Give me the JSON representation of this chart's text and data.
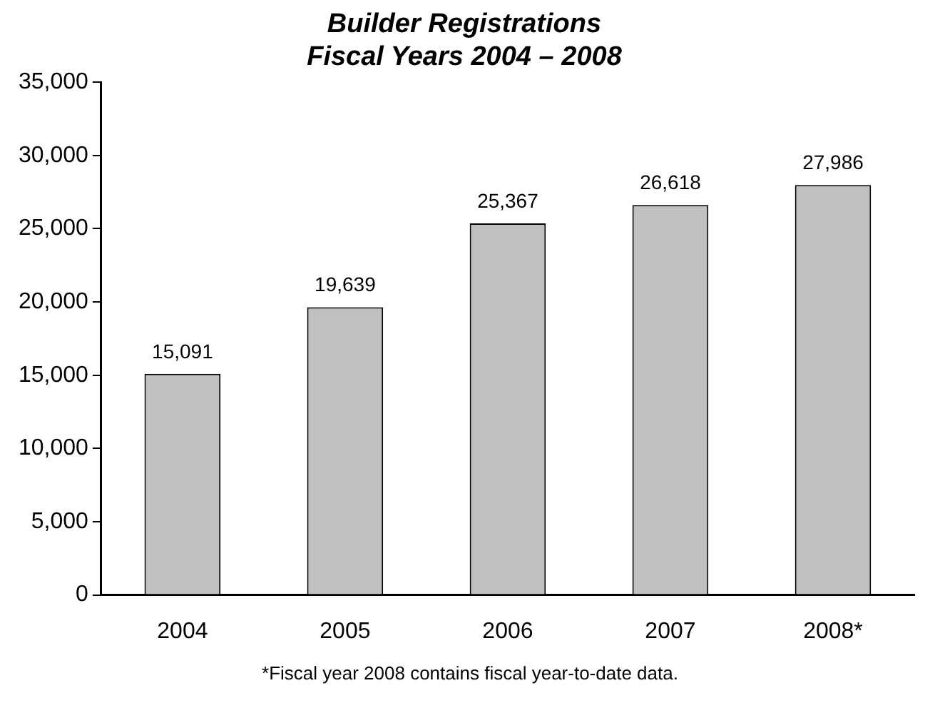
{
  "chart_data": {
    "type": "bar",
    "title": "Builder Registrations\nFiscal Years 2004 – 2008",
    "categories": [
      "2004",
      "2005",
      "2006",
      "2007",
      "2008*"
    ],
    "values": [
      15091,
      19639,
      25367,
      26618,
      27986
    ],
    "color": "#c0c0c0",
    "value_labels": [
      "15,091",
      "19,639",
      "25,367",
      "26,618",
      "27,986"
    ],
    "ylim": [
      0,
      35000
    ],
    "yticks": [
      0,
      {
        "value": 5000,
        "label": "5,000"
      },
      {
        "value": 10000,
        "label": "10,000"
      },
      {
        "value": 15000,
        "label": "15,000"
      },
      {
        "value": 20000,
        "label": "20,000"
      },
      {
        "value": 25000,
        "label": "25,000"
      },
      {
        "value": 30000,
        "label": "30,000"
      },
      {
        "value": 35000,
        "label": "35,000"
      }
    ],
    "grid": false,
    "legend": false,
    "annotations": [
      "*Fiscal year 2008 contains fiscal year-to-date data."
    ]
  }
}
